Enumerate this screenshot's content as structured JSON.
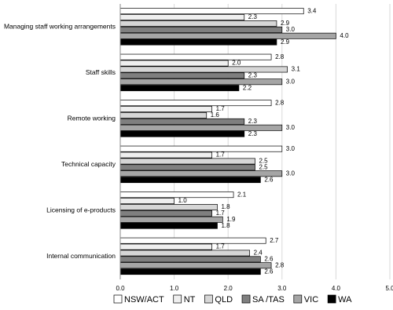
{
  "chart_data": {
    "type": "hbar",
    "categories": [
      "Managing staff working arrangements",
      "Staff skills",
      "Remote working",
      "Technical capacity",
      "Licensing of e-products",
      "Internal communication"
    ],
    "series": [
      {
        "name": "NSW/ACT",
        "color": "#ffffff",
        "values": [
          3.4,
          2.8,
          2.8,
          3.0,
          2.1,
          2.7
        ],
        "value_labels": [
          "3.4",
          "2.8",
          "2.8",
          "3.0",
          "2.1",
          "2.7"
        ]
      },
      {
        "name": "NT",
        "color": "#efefef",
        "values": [
          2.3,
          2.0,
          1.7,
          1.7,
          1.0,
          1.7
        ],
        "value_labels": [
          "2.3",
          "2.0",
          "1.7",
          "1.7",
          "1.0",
          "1.7"
        ]
      },
      {
        "name": "QLD",
        "color": "#d6d6d6",
        "values": [
          2.9,
          3.1,
          1.6,
          2.5,
          1.8,
          2.4
        ],
        "value_labels": [
          "2.9",
          "3.1",
          "1.6",
          "2.5",
          "1.8",
          "2.4"
        ]
      },
      {
        "name": "SA /TAS",
        "color": "#7f7f7f",
        "values": [
          3.0,
          2.3,
          2.3,
          2.5,
          1.7,
          2.6
        ],
        "value_labels": [
          "3.0",
          "2.3",
          "2.3",
          "2.5",
          "1.7",
          "2.6"
        ]
      },
      {
        "name": "VIC",
        "color": "#a5a5a5",
        "values": [
          4.0,
          3.0,
          3.0,
          3.0,
          1.9,
          2.8
        ],
        "value_labels": [
          "4.0",
          "3.0",
          "3.0",
          "3.0",
          "1.9",
          "2.8"
        ]
      },
      {
        "name": "WA",
        "color": "#000000",
        "values": [
          2.9,
          2.2,
          2.3,
          2.6,
          1.8,
          2.6
        ],
        "value_labels": [
          "2.9",
          "2.2",
          "2.3",
          "2.6",
          "1.8",
          "2.6"
        ]
      }
    ],
    "xlim": [
      0,
      5
    ],
    "xticks": [
      {
        "value": 0,
        "label": "0.0"
      },
      {
        "value": 1,
        "label": "1.0"
      },
      {
        "value": 2,
        "label": "2.0"
      },
      {
        "value": 3,
        "label": "3.0"
      },
      {
        "value": 4,
        "label": "4.0"
      },
      {
        "value": 5,
        "label": "5.0"
      }
    ],
    "grid": true
  }
}
